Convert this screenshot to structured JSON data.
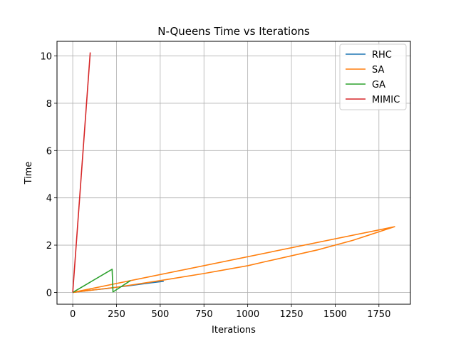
{
  "chart_data": {
    "type": "line",
    "title": "N-Queens Time vs Iterations",
    "xlabel": "Iterations",
    "ylabel": "Time",
    "xlim": [
      -90,
      1930
    ],
    "ylim": [
      -0.5,
      10.62
    ],
    "xticks": [
      0,
      250,
      500,
      750,
      1000,
      1250,
      1500,
      1750
    ],
    "yticks": [
      0,
      2,
      4,
      6,
      8,
      10
    ],
    "grid": true,
    "legend": "top-right",
    "series": [
      {
        "name": "RHC",
        "color": "#1f77b4",
        "x": [
          0,
          100,
          200,
          250,
          320,
          400,
          450,
          520
        ],
        "y": [
          0.0,
          0.09,
          0.17,
          0.22,
          0.28,
          0.36,
          0.41,
          0.47
        ]
      },
      {
        "name": "SA",
        "color": "#ff7f0e",
        "x": [
          0,
          1840,
          1600,
          1400,
          1100,
          1000,
          750,
          500,
          250,
          0
        ],
        "y": [
          0.0,
          2.78,
          2.2,
          1.8,
          1.3,
          1.13,
          0.8,
          0.5,
          0.22,
          0.0
        ]
      },
      {
        "name": "GA",
        "color": "#2ca02c",
        "x": [
          0,
          225,
          230,
          330
        ],
        "y": [
          0.0,
          0.98,
          0.02,
          0.5
        ]
      },
      {
        "name": "MIMIC",
        "color": "#d62728",
        "x": [
          0,
          100
        ],
        "y": [
          0.0,
          10.15
        ]
      }
    ]
  }
}
